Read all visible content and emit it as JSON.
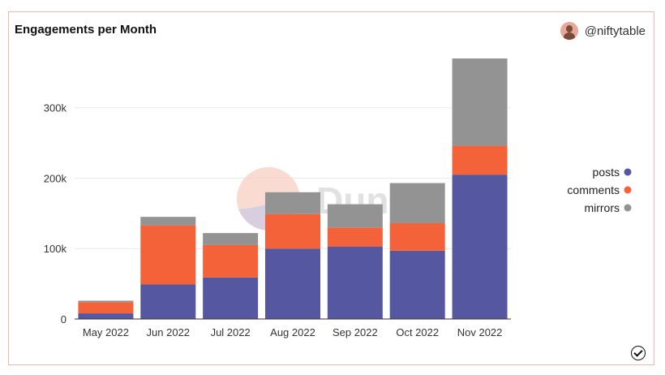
{
  "header": {
    "title": "Engagements per Month",
    "author": "@niftytable"
  },
  "watermark": "Dune",
  "colors": {
    "posts": "#5558a0",
    "comments": "#f4623a",
    "mirrors": "#939393",
    "grid": "#e9e9e9"
  },
  "chart_data": {
    "type": "bar",
    "stacked": true,
    "title": "Engagements per Month",
    "xlabel": "",
    "ylabel": "",
    "categories": [
      "May 2022",
      "Jun 2022",
      "Jul 2022",
      "Aug 2022",
      "Sep 2022",
      "Oct 2022",
      "Nov 2022"
    ],
    "series": [
      {
        "name": "posts",
        "values": [
          8000,
          49000,
          59000,
          100000,
          103000,
          97000,
          205000
        ]
      },
      {
        "name": "comments",
        "values": [
          16000,
          84000,
          46000,
          49000,
          27000,
          39000,
          41000
        ]
      },
      {
        "name": "mirrors",
        "values": [
          2000,
          12000,
          17000,
          31000,
          33000,
          57000,
          124000
        ]
      }
    ],
    "ylim": [
      0,
      370000
    ],
    "yticks": [
      0,
      100000,
      200000,
      300000
    ],
    "ytick_labels": [
      "0",
      "100k",
      "200k",
      "300k"
    ],
    "grid": true,
    "legend_position": "right"
  }
}
